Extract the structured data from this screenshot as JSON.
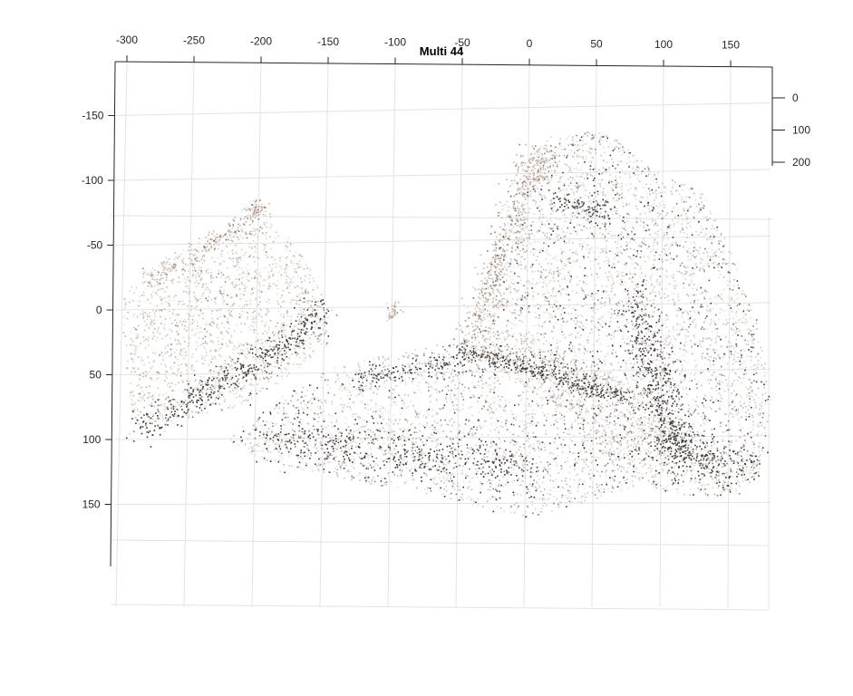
{
  "chart_data": {
    "type": "scatter",
    "title": "Multi 44",
    "x_ticks": [
      -300,
      -250,
      -200,
      -150,
      -100,
      -50,
      0,
      50,
      100,
      150
    ],
    "y_ticks": [
      -150,
      -100,
      -50,
      0,
      50,
      100,
      150
    ],
    "z_ticks": [
      0,
      100,
      200
    ],
    "xlim": [
      -310,
      180
    ],
    "ylim": [
      -190,
      210
    ],
    "zlim": [
      -30,
      200
    ],
    "grid": true,
    "marker_size": 1,
    "point_colors": [
      "#3a3a3a",
      "#8a7f7a",
      "#c9b3a0",
      "#ddd0c6",
      "#e9dcd6",
      "#c8c0c8"
    ],
    "clusters": [
      {
        "name": "left-box-face",
        "polygon": [
          [
            -305,
            -5
          ],
          [
            -290,
            -30
          ],
          [
            -215,
            -75
          ],
          [
            -205,
            -85
          ],
          [
            -195,
            -75
          ],
          [
            -170,
            -45
          ],
          [
            -155,
            -15
          ],
          [
            -150,
            25
          ],
          [
            -185,
            55
          ],
          [
            -220,
            75
          ],
          [
            -265,
            85
          ],
          [
            -295,
            88
          ],
          [
            -300,
            55
          ]
        ],
        "count": 1700,
        "color_bias": "light-beige"
      },
      {
        "name": "left-box-dark-edge",
        "line": [
          [
            -292,
            92
          ],
          [
            -255,
            70
          ],
          [
            -220,
            50
          ],
          [
            -185,
            28
          ],
          [
            -155,
            0
          ]
        ],
        "spread": 6,
        "count": 550,
        "color_bias": "dark"
      },
      {
        "name": "left-box-top-ridge",
        "line": [
          [
            -290,
            -22
          ],
          [
            -250,
            -42
          ],
          [
            -210,
            -70
          ],
          [
            -200,
            -82
          ]
        ],
        "spread": 4,
        "count": 200,
        "color_bias": "tan"
      },
      {
        "name": "floor-slab",
        "polygon": [
          [
            -225,
            100
          ],
          [
            -190,
            70
          ],
          [
            -150,
            45
          ],
          [
            -110,
            35
          ],
          [
            -60,
            25
          ],
          [
            20,
            30
          ],
          [
            60,
            50
          ],
          [
            90,
            60
          ],
          [
            110,
            90
          ],
          [
            95,
            130
          ],
          [
            50,
            145
          ],
          [
            0,
            160
          ],
          [
            -60,
            145
          ],
          [
            -140,
            130
          ],
          [
            -200,
            115
          ]
        ],
        "count": 2600,
        "color_bias": "mixed"
      },
      {
        "name": "floor-dark-band",
        "line": [
          [
            -200,
            95
          ],
          [
            -150,
            105
          ],
          [
            -100,
            110
          ],
          [
            -50,
            115
          ],
          [
            0,
            125
          ]
        ],
        "spread": 9,
        "count": 520,
        "color_bias": "dark"
      },
      {
        "name": "floor-top-edge",
        "line": [
          [
            -130,
            55
          ],
          [
            -80,
            42
          ],
          [
            -40,
            35
          ],
          [
            10,
            40
          ],
          [
            50,
            55
          ]
        ],
        "spread": 4,
        "count": 300,
        "color_bias": "dark"
      },
      {
        "name": "right-shape-body",
        "polygon": [
          [
            -50,
            30
          ],
          [
            -40,
            -10
          ],
          [
            -25,
            -55
          ],
          [
            -10,
            -80
          ],
          [
            0,
            -120
          ],
          [
            20,
            -135
          ],
          [
            55,
            -140
          ],
          [
            90,
            -110
          ],
          [
            130,
            -90
          ],
          [
            150,
            -45
          ],
          [
            170,
            10
          ],
          [
            180,
            70
          ],
          [
            170,
            130
          ],
          [
            140,
            145
          ],
          [
            100,
            140
          ],
          [
            80,
            130
          ],
          [
            60,
            120
          ],
          [
            30,
            90
          ],
          [
            0,
            60
          ]
        ],
        "count": 4200,
        "color_bias": "mixed"
      },
      {
        "name": "right-shape-tan-rim",
        "line": [
          [
            -45,
            25
          ],
          [
            -30,
            -15
          ],
          [
            -15,
            -60
          ],
          [
            0,
            -105
          ],
          [
            10,
            -120
          ]
        ],
        "spread": 7,
        "count": 600,
        "color_bias": "tan"
      },
      {
        "name": "right-shape-dark-fold",
        "line": [
          [
            80,
            -10
          ],
          [
            88,
            30
          ],
          [
            95,
            60
          ],
          [
            105,
            90
          ],
          [
            110,
            110
          ]
        ],
        "spread": 8,
        "count": 520,
        "color_bias": "dark"
      },
      {
        "name": "right-shape-dark-top",
        "line": [
          [
            20,
            -85
          ],
          [
            40,
            -80
          ],
          [
            55,
            -75
          ]
        ],
        "spread": 5,
        "count": 120,
        "color_bias": "dark"
      },
      {
        "name": "right-shape-lower-dark",
        "line": [
          [
            100,
            100
          ],
          [
            130,
            115
          ],
          [
            160,
            120
          ]
        ],
        "spread": 10,
        "count": 320,
        "color_bias": "dark"
      },
      {
        "name": "connector-ledge",
        "line": [
          [
            -50,
            30
          ],
          [
            0,
            45
          ],
          [
            40,
            60
          ],
          [
            70,
            65
          ]
        ],
        "spread": 3,
        "count": 300,
        "color_bias": "dark"
      },
      {
        "name": "small-hook",
        "line": [
          [
            -100,
            -5
          ],
          [
            -105,
            5
          ],
          [
            -98,
            0
          ]
        ],
        "spread": 2,
        "count": 40,
        "color_bias": "tan"
      }
    ]
  }
}
